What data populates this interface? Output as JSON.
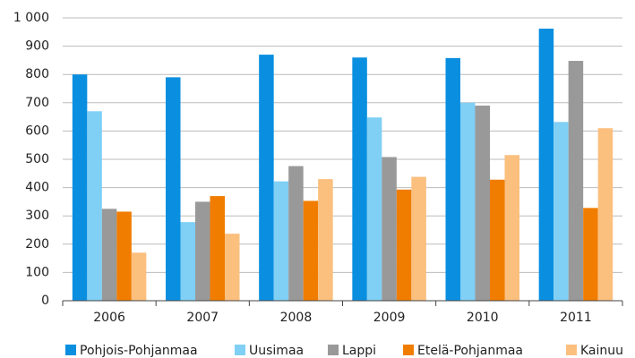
{
  "chart_data": {
    "type": "bar",
    "categories": [
      "2006",
      "2007",
      "2008",
      "2009",
      "2010",
      "2011"
    ],
    "series": [
      {
        "name": "Pohjois-Pohjanmaa",
        "color": "#0a8fe0",
        "values": [
          800,
          790,
          870,
          860,
          858,
          962
        ]
      },
      {
        "name": "Uusimaa",
        "color": "#80cff5",
        "values": [
          670,
          278,
          422,
          648,
          700,
          632
        ]
      },
      {
        "name": "Lappi",
        "color": "#999999",
        "values": [
          325,
          350,
          476,
          508,
          690,
          848
        ]
      },
      {
        "name": "Etelä-Pohjanmaa",
        "color": "#f07d00",
        "values": [
          315,
          370,
          353,
          393,
          428,
          328
        ]
      },
      {
        "name": "Kainuu",
        "color": "#fbbf7e",
        "values": [
          170,
          237,
          430,
          438,
          515,
          610
        ]
      }
    ],
    "ylim": [
      0,
      1000
    ],
    "yticks": [
      0,
      100,
      200,
      300,
      400,
      500,
      600,
      700,
      800,
      900,
      {
        "value": 1000,
        "label": "1 000"
      }
    ],
    "grid": true,
    "legend": "bottom"
  }
}
